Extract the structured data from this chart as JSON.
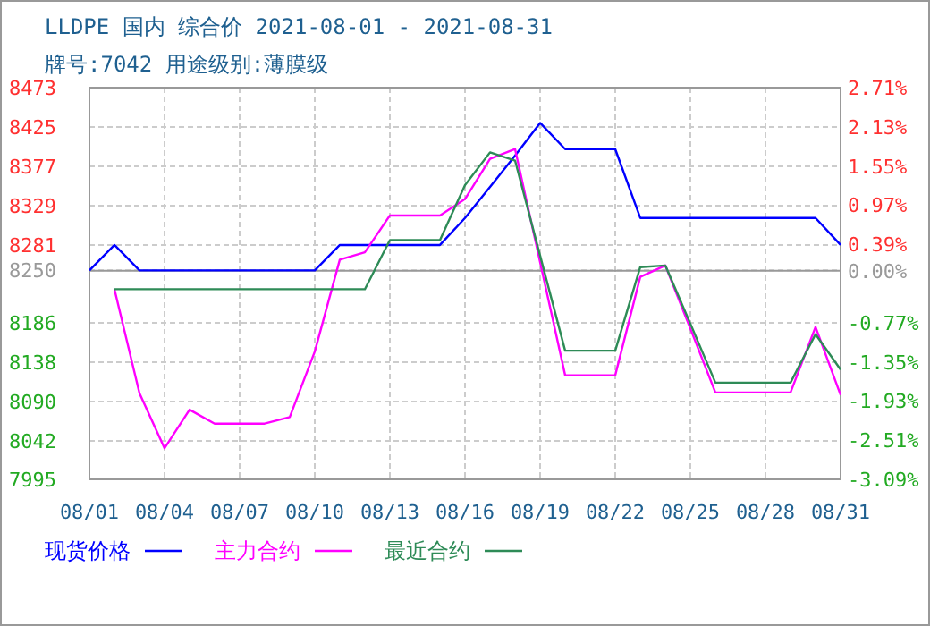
{
  "chart_data": {
    "type": "line",
    "title": "LLDPE 国内 综合价 2021-08-01 - 2021-08-31",
    "subtitle": "牌号:7042 用途级别:薄膜级",
    "categories": [
      "08/01",
      null,
      null,
      "08/04",
      null,
      null,
      "08/07",
      null,
      null,
      "08/10",
      null,
      null,
      "08/13",
      null,
      null,
      "08/16",
      null,
      null,
      "08/19",
      null,
      null,
      "08/22",
      null,
      null,
      "08/25",
      null,
      null,
      "08/28",
      null,
      null,
      "08/31"
    ],
    "series": [
      {
        "name": "现货价格",
        "color": "#0000ff",
        "values": [
          8250,
          8281,
          8250,
          8250,
          8250,
          8250,
          8250,
          8250,
          8250,
          8250,
          8281,
          8281,
          8281,
          8281,
          8281,
          8314,
          8352,
          8390,
          8430,
          8398,
          8398,
          8398,
          8314,
          8314,
          8314,
          8314,
          8314,
          8314,
          8314,
          8314,
          8281
        ]
      },
      {
        "name": "主力合约",
        "color": "#ff00ff",
        "values": [
          null,
          8227,
          8100,
          8033,
          8080,
          8063,
          8063,
          8063,
          8071,
          8151,
          8263,
          8272,
          8317,
          8317,
          8317,
          8337,
          8386,
          8398,
          8260,
          8122,
          8122,
          8122,
          8242,
          8256,
          8179,
          8101,
          8101,
          8101,
          8101,
          8181,
          8098
        ]
      },
      {
        "name": "最近合约",
        "color": "#2e8b57",
        "values": [
          null,
          8227,
          8227,
          8227,
          8227,
          8227,
          8227,
          8227,
          8227,
          8227,
          8227,
          8227,
          8287,
          8287,
          8287,
          8354,
          8394,
          8384,
          8268,
          8152,
          8152,
          8152,
          8254,
          8256,
          8185,
          8113,
          8113,
          8113,
          8113,
          8172,
          8129
        ]
      }
    ],
    "ylim": [
      7995,
      8473
    ],
    "yticks": [
      7995,
      8042,
      8090,
      8138,
      8186,
      8250,
      8281,
      8329,
      8377,
      8425,
      8473
    ],
    "y2lim": [
      -3.09,
      2.71
    ],
    "y2ticks": [
      {
        "value": -3.09,
        "label": "-3.09%"
      },
      {
        "value": -2.51,
        "label": "-2.51%"
      },
      {
        "value": -1.93,
        "label": "-1.93%"
      },
      {
        "value": -1.35,
        "label": "-1.35%"
      },
      {
        "value": -0.77,
        "label": "-0.77%"
      },
      {
        "value": 0,
        "label": "0.00%"
      },
      {
        "value": 0.39,
        "label": "0.39%"
      },
      {
        "value": 0.97,
        "label": "0.97%"
      },
      {
        "value": 1.55,
        "label": "1.55%"
      },
      {
        "value": 2.13,
        "label": "2.13%"
      },
      {
        "value": 2.71,
        "label": "2.71%"
      }
    ],
    "ref_lines": [
      {
        "axis": "y2",
        "value": 0,
        "color": "#999999"
      }
    ],
    "grid": true,
    "legend": "bottom"
  }
}
